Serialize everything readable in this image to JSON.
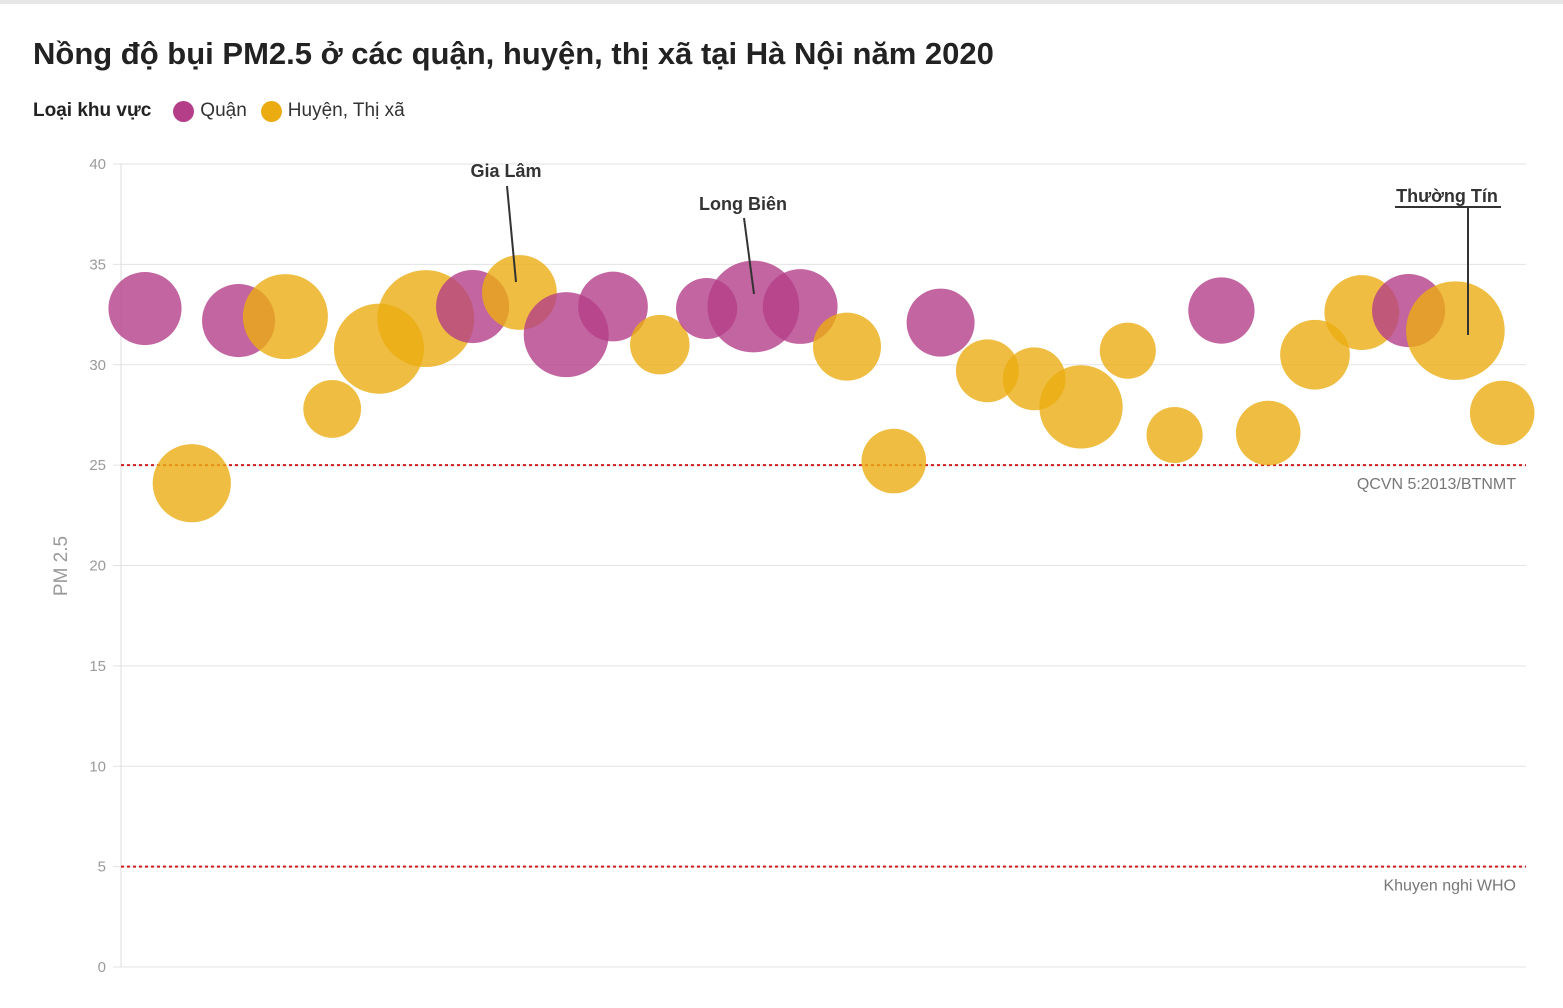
{
  "title": "Nồng độ bụi PM2.5 ở các quận, huyện, thị xã tại Hà Nội năm 2020",
  "legend": {
    "title": "Loại khu vực",
    "items": [
      {
        "label": "Quận",
        "color": "#b43f88"
      },
      {
        "label": "Huyện, Thị xã",
        "color": "#ebac12"
      }
    ]
  },
  "chart_data": {
    "type": "scatter",
    "subtype": "bubble",
    "ylabel": "PM 2.5",
    "ylim": [
      0,
      40
    ],
    "yticks": [
      0,
      5,
      10,
      15,
      20,
      25,
      30,
      35,
      40
    ],
    "grid": true,
    "legend_position": "top-left",
    "reference_lines": [
      {
        "value": 25,
        "label": "QCVN 5:2013/BTNMT",
        "color": "#cc1f1f"
      },
      {
        "value": 5,
        "label": "Khuyen nghi WHO",
        "color": "#cc1f1f"
      }
    ],
    "colors": {
      "quan": "#b43f88",
      "huyen": "#ebac12"
    },
    "points": [
      {
        "x": 1,
        "y": 32.8,
        "size": 43,
        "group": "quan"
      },
      {
        "x": 2,
        "y": 24.1,
        "size": 46,
        "group": "huyen"
      },
      {
        "x": 3,
        "y": 32.2,
        "size": 43,
        "group": "quan"
      },
      {
        "x": 4,
        "y": 32.4,
        "size": 50,
        "group": "huyen"
      },
      {
        "x": 5,
        "y": 27.8,
        "size": 34,
        "group": "huyen"
      },
      {
        "x": 6,
        "y": 30.8,
        "size": 53,
        "group": "huyen"
      },
      {
        "x": 7,
        "y": 32.3,
        "size": 57,
        "group": "huyen"
      },
      {
        "x": 8,
        "y": 32.9,
        "size": 43,
        "group": "quan"
      },
      {
        "x": 9,
        "y": 33.6,
        "size": 44,
        "group": "huyen",
        "label": "Gia Lâm"
      },
      {
        "x": 10,
        "y": 31.5,
        "size": 50,
        "group": "quan"
      },
      {
        "x": 11,
        "y": 32.9,
        "size": 41,
        "group": "quan"
      },
      {
        "x": 12,
        "y": 31.0,
        "size": 35,
        "group": "huyen"
      },
      {
        "x": 13,
        "y": 32.8,
        "size": 36,
        "group": "quan"
      },
      {
        "x": 14,
        "y": 32.9,
        "size": 54,
        "group": "quan",
        "label": "Long Biên"
      },
      {
        "x": 15,
        "y": 32.9,
        "size": 44,
        "group": "quan"
      },
      {
        "x": 16,
        "y": 30.9,
        "size": 40,
        "group": "huyen"
      },
      {
        "x": 17,
        "y": 25.2,
        "size": 38,
        "group": "huyen"
      },
      {
        "x": 18,
        "y": 32.1,
        "size": 40,
        "group": "quan"
      },
      {
        "x": 19,
        "y": 29.7,
        "size": 37,
        "group": "huyen"
      },
      {
        "x": 20,
        "y": 29.3,
        "size": 37,
        "group": "huyen"
      },
      {
        "x": 21,
        "y": 27.9,
        "size": 49,
        "group": "huyen"
      },
      {
        "x": 22,
        "y": 30.7,
        "size": 33,
        "group": "huyen"
      },
      {
        "x": 23,
        "y": 26.5,
        "size": 33,
        "group": "huyen"
      },
      {
        "x": 24,
        "y": 32.7,
        "size": 39,
        "group": "quan"
      },
      {
        "x": 25,
        "y": 26.6,
        "size": 38,
        "group": "huyen"
      },
      {
        "x": 26,
        "y": 30.5,
        "size": 41,
        "group": "huyen"
      },
      {
        "x": 27,
        "y": 32.6,
        "size": 44,
        "group": "huyen"
      },
      {
        "x": 28,
        "y": 32.7,
        "size": 43,
        "group": "quan"
      },
      {
        "x": 29,
        "y": 31.7,
        "size": 58,
        "group": "huyen",
        "label": "Thường Tín"
      },
      {
        "x": 30,
        "y": 27.6,
        "size": 38,
        "group": "huyen"
      }
    ]
  }
}
